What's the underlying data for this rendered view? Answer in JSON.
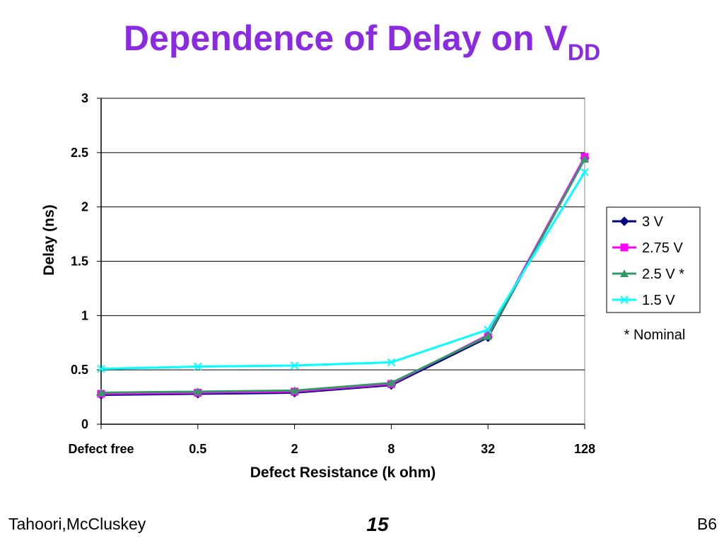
{
  "title": {
    "main": "Dependence of Delay on V",
    "subscript": "DD"
  },
  "footer": {
    "left": "Tahoori,McCluskey",
    "center": "15",
    "right": "B6"
  },
  "note": "* Nominal",
  "colors": {
    "title": "#8a2be2",
    "series_3v": "#000080",
    "series_2_75v": "#ff00ff",
    "series_2_5v": "#339966",
    "series_1_5v": "#00ffff"
  },
  "chart_data": {
    "type": "line",
    "categories": [
      "Defect free",
      "0.5",
      "2",
      "8",
      "32",
      "128"
    ],
    "xlabel": "Defect Resistance (k ohm)",
    "ylabel": "Delay (ns)",
    "ylim": [
      0,
      3
    ],
    "yticks": [
      "0",
      "0.5",
      "1",
      "1.5",
      "2",
      "2.5",
      "3"
    ],
    "grid": "horizontal major gridlines",
    "legend_position": "right",
    "series": [
      {
        "name": "3 V",
        "marker": "diamond",
        "values": [
          0.27,
          0.28,
          0.29,
          0.36,
          0.8,
          2.45
        ]
      },
      {
        "name": "2.75 V",
        "marker": "square",
        "values": [
          0.28,
          0.29,
          0.3,
          0.37,
          0.82,
          2.46
        ]
      },
      {
        "name": "2.5 V *",
        "marker": "triangle",
        "values": [
          0.29,
          0.3,
          0.31,
          0.38,
          0.81,
          2.44
        ]
      },
      {
        "name": "1.5 V",
        "marker": "x",
        "values": [
          0.51,
          0.53,
          0.54,
          0.57,
          0.87,
          2.32
        ]
      }
    ]
  }
}
